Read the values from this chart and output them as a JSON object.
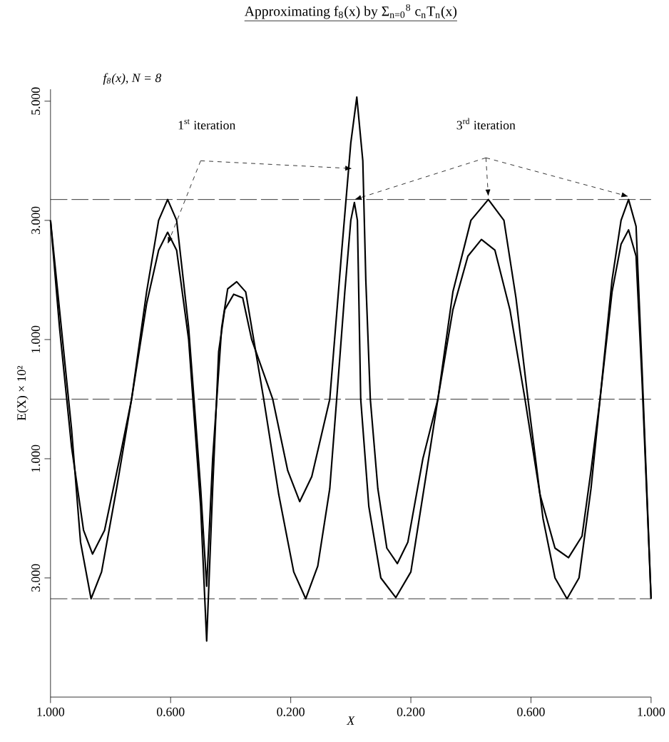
{
  "chart_data": {
    "type": "line",
    "title": "Approximating f$_{8}$(x) by Σ$_{n=0}$$^{8}$ c$_{n}$T$_{n}$(x)",
    "xlabel": "X",
    "ylabel": "E(X) × 10²",
    "annotations": [
      "f$_{8}$(x), N = 8",
      "1$^{st}$ iteration",
      "3$^{rd}$ iteration"
    ],
    "xlim": [
      -1,
      1
    ],
    "ylim": [
      -5,
      5.2
    ],
    "xticks": [
      {
        "value": -1,
        "label": "1.000"
      },
      {
        "value": -0.6,
        "label": "0.600"
      },
      {
        "value": -0.2,
        "label": "0.200"
      },
      {
        "value": 0.2,
        "label": "0.200"
      },
      {
        "value": 0.6,
        "label": "0.600"
      },
      {
        "value": 1,
        "label": "1.000"
      }
    ],
    "yticks": [
      {
        "value": 5,
        "label": "5.000"
      },
      {
        "value": 3,
        "label": "3.000"
      },
      {
        "value": 1,
        "label": "1.000"
      },
      {
        "value": -1,
        "label": "1.000"
      },
      {
        "value": -3,
        "label": "3.000"
      }
    ],
    "marker": "none",
    "line_style": "solid",
    "legend": false,
    "ref_lines": [
      {
        "axis": "y",
        "value": 3.35,
        "line_style": "dashed"
      },
      {
        "axis": "y",
        "value": 0,
        "line_style": "dashed"
      },
      {
        "axis": "y",
        "value": -3.35,
        "line_style": "dashed"
      }
    ],
    "series": [
      {
        "color": "#000000",
        "x": [
          -1,
          -0.97,
          -0.93,
          -0.89,
          -0.86,
          -0.82,
          -0.77,
          -0.73,
          -0.68,
          -0.64,
          -0.61,
          -0.58,
          -0.54,
          -0.5,
          -0.48,
          -0.46,
          -0.44,
          -0.42,
          -0.39,
          -0.36,
          -0.33,
          -0.26,
          -0.21,
          -0.17,
          -0.13,
          -0.07,
          -0.03,
          0.0,
          0.02,
          0.04,
          0.05,
          0.065,
          0.09,
          0.12,
          0.155,
          0.19,
          0.24,
          0.29,
          0.34,
          0.39,
          0.435,
          0.48,
          0.53,
          0.58,
          0.63,
          0.68,
          0.725,
          0.77,
          0.8,
          0.83,
          0.87,
          0.9,
          0.925,
          0.95,
          0.97,
          1.0
        ],
        "values": [
          3.0,
          1.2,
          -0.8,
          -2.2,
          -2.6,
          -2.2,
          -1.0,
          0,
          1.6,
          2.5,
          2.8,
          2.5,
          1.0,
          -1.8,
          -4.06,
          -1.5,
          0.8,
          1.5,
          1.76,
          1.7,
          1.0,
          0,
          -1.2,
          -1.72,
          -1.3,
          0,
          2.5,
          4.3,
          5.07,
          4.0,
          2.0,
          0,
          -1.5,
          -2.5,
          -2.76,
          -2.4,
          -1.0,
          0,
          1.5,
          2.4,
          2.68,
          2.5,
          1.5,
          0,
          -1.6,
          -2.5,
          -2.66,
          -2.3,
          -1.2,
          0,
          1.8,
          2.6,
          2.84,
          2.4,
          0.3,
          -3.35
        ]
      },
      {
        "color": "#000000",
        "x": [
          -1,
          -0.97,
          -0.93,
          -0.9,
          -0.865,
          -0.83,
          -0.78,
          -0.73,
          -0.68,
          -0.64,
          -0.61,
          -0.58,
          -0.54,
          -0.5,
          -0.48,
          -0.46,
          -0.43,
          -0.41,
          -0.38,
          -0.35,
          -0.32,
          -0.29,
          -0.24,
          -0.19,
          -0.15,
          -0.11,
          -0.07,
          -0.047,
          -0.02,
          0.0,
          0.012,
          0.022,
          0.033,
          0.06,
          0.1,
          0.15,
          0.2,
          0.25,
          0.29,
          0.34,
          0.4,
          0.458,
          0.51,
          0.55,
          0.59,
          0.64,
          0.68,
          0.72,
          0.76,
          0.8,
          0.83,
          0.87,
          0.9,
          0.925,
          0.95,
          0.97,
          1.0
        ],
        "values": [
          3.0,
          1.5,
          -0.5,
          -2.4,
          -3.35,
          -2.9,
          -1.5,
          0,
          1.8,
          3.0,
          3.35,
          3.0,
          1.2,
          -1.5,
          -3.14,
          -1.0,
          1.2,
          1.85,
          1.97,
          1.8,
          0.9,
          0,
          -1.6,
          -2.9,
          -3.35,
          -2.8,
          -1.5,
          0,
          1.8,
          3.0,
          3.3,
          3.0,
          0,
          -1.8,
          -3.0,
          -3.33,
          -2.9,
          -1.3,
          0,
          1.8,
          3.0,
          3.35,
          3.0,
          1.7,
          0,
          -2.0,
          -3.0,
          -3.35,
          -3.0,
          -1.5,
          0,
          2.0,
          3.0,
          3.35,
          2.9,
          0.5,
          -3.35
        ]
      }
    ]
  }
}
